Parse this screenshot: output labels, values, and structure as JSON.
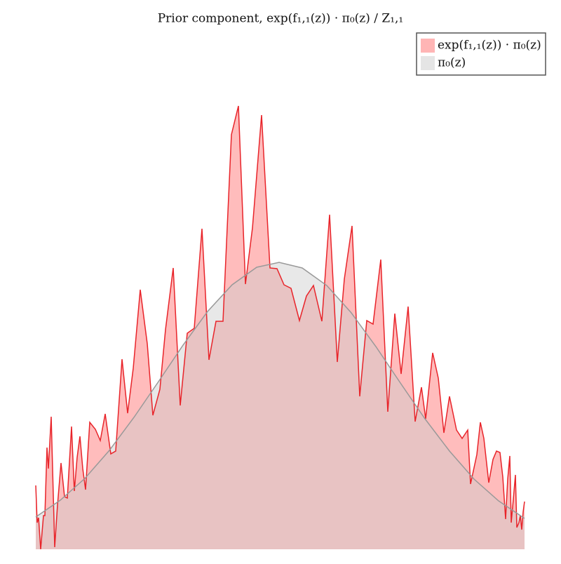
{
  "chart_data": {
    "type": "area",
    "title": "Prior component, exp(f₁,₁(z)) · π₀(z) / Z₁,₁",
    "xlim": [
      51,
      748
    ],
    "ylim": [
      0,
      650
    ],
    "legend": "upper right",
    "series": [
      {
        "name": "exp(f₁,₁(z)) · π₀(z)",
        "color": "#e8242a",
        "fill": "#ff6b6b",
        "x": [
          51,
          53,
          55,
          58,
          62,
          64,
          67,
          69,
          73,
          78,
          82,
          87,
          92,
          96,
          102,
          106,
          110,
          114,
          118,
          122,
          128,
          136,
          143,
          150,
          158,
          165,
          174,
          182,
          190,
          200,
          210,
          218,
          228,
          236,
          247,
          257,
          267,
          277,
          288,
          298,
          308,
          318,
          330,
          340,
          350,
          360,
          373,
          385,
          395,
          405,
          415,
          427,
          437,
          447,
          459,
          470,
          481,
          491,
          502,
          513,
          523,
          532,
          543,
          553,
          563,
          572,
          582,
          592,
          601,
          607,
          617,
          625,
          633,
          641,
          651,
          659,
          667,
          671,
          680,
          685,
          690,
          697,
          703,
          708,
          713,
          717,
          721,
          724,
          727,
          729,
          732,
          735,
          737,
          740,
          742,
          744,
          746,
          748
        ],
        "values": [
          91,
          38,
          45,
          0,
          48,
          48,
          145,
          115,
          189,
          3,
          63,
          123,
          75,
          73,
          175,
          83,
          131,
          161,
          115,
          85,
          181,
          171,
          155,
          193,
          136,
          140,
          271,
          194,
          258,
          370,
          293,
          191,
          228,
          313,
          401,
          205,
          308,
          315,
          457,
          270,
          325,
          325,
          591,
          632,
          378,
          458,
          619,
          401,
          400,
          377,
          372,
          326,
          361,
          376,
          325,
          477,
          267,
          385,
          461,
          218,
          326,
          321,
          413,
          196,
          336,
          250,
          346,
          182,
          231,
          186,
          280,
          244,
          166,
          218,
          170,
          158,
          170,
          93,
          135,
          181,
          158,
          95,
          128,
          140,
          138,
          103,
          43,
          100,
          133,
          38,
          71,
          106,
          31,
          38,
          48,
          28,
          53,
          68
        ]
      },
      {
        "name": "π₀(z)",
        "color": "#999999",
        "fill": "#cccccc",
        "x": [
          51,
          86,
          121,
          156,
          191,
          226,
          261,
          296,
          331,
          366,
          398,
          431,
          466,
          501,
          536,
          571,
          606,
          641,
          676,
          711,
          748
        ],
        "values": [
          46,
          70,
          101,
          141,
          188,
          239,
          291,
          339,
          377,
          402,
          409,
          401,
          376,
          337,
          289,
          237,
          186,
          140,
          100,
          69,
          44
        ]
      }
    ]
  }
}
